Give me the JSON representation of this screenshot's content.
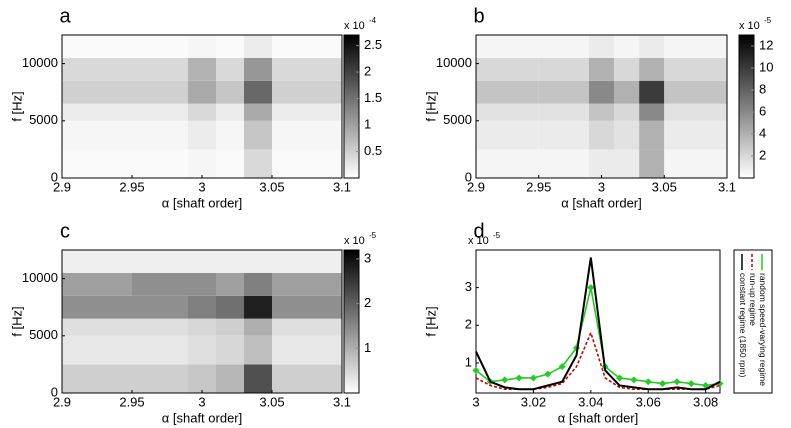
{
  "chart_data": [
    {
      "type": "heatmap",
      "panel_label": "a",
      "xlabel": "α [shaft order]",
      "ylabel": "f [Hz]",
      "xlim": [
        2.9,
        3.1
      ],
      "xticks": [
        2.9,
        2.95,
        3,
        3.05,
        3.1
      ],
      "ylim": [
        0,
        12500
      ],
      "yticks": [
        0,
        5000,
        10000
      ],
      "x_edges": [
        2.9,
        2.95,
        2.99,
        3.01,
        3.03,
        3.05,
        3.1
      ],
      "y_edges": [
        0,
        2500,
        5000,
        6500,
        8500,
        10500,
        12500
      ],
      "z": [
        [
          0.05,
          0.05,
          0.1,
          0.05,
          0.4,
          0.05
        ],
        [
          0.1,
          0.1,
          0.2,
          0.1,
          0.6,
          0.1
        ],
        [
          0.2,
          0.2,
          0.4,
          0.2,
          0.9,
          0.2
        ],
        [
          0.5,
          0.5,
          0.9,
          0.6,
          1.6,
          0.5
        ],
        [
          0.4,
          0.4,
          0.8,
          0.4,
          1.1,
          0.4
        ],
        [
          0.05,
          0.05,
          0.1,
          0.05,
          0.2,
          0.05
        ]
      ],
      "zlim": [
        0,
        2.7
      ],
      "zticks": [
        0.5,
        1,
        1.5,
        2,
        2.5
      ],
      "colorbar_label": "x 10",
      "colorbar_exponent": "-4"
    },
    {
      "type": "heatmap",
      "panel_label": "b",
      "xlabel": "α [shaft order]",
      "ylabel": "f [Hz]",
      "xlim": [
        2.9,
        3.1
      ],
      "xticks": [
        2.9,
        2.95,
        3,
        3.05,
        3.1
      ],
      "ylim": [
        0,
        12500
      ],
      "yticks": [
        0,
        5000,
        10000
      ],
      "x_edges": [
        2.9,
        2.95,
        2.99,
        3.01,
        3.03,
        3.05,
        3.1
      ],
      "y_edges": [
        0,
        2500,
        5000,
        6500,
        8500,
        10500,
        12500
      ],
      "z": [
        [
          0.5,
          0.5,
          1,
          1,
          4,
          0.5
        ],
        [
          1,
          1,
          2,
          1.5,
          4,
          1
        ],
        [
          1.5,
          1.5,
          3,
          2,
          6,
          1.5
        ],
        [
          3,
          3,
          6,
          4,
          10,
          3
        ],
        [
          2,
          2,
          4,
          2,
          4,
          2
        ],
        [
          0.5,
          0.5,
          1,
          0.5,
          1,
          0.5
        ]
      ],
      "zlim": [
        0,
        13
      ],
      "zticks": [
        2,
        4,
        6,
        8,
        10,
        12
      ],
      "colorbar_label": "x 10",
      "colorbar_exponent": "-5"
    },
    {
      "type": "heatmap",
      "panel_label": "c",
      "xlabel": "α [shaft order]",
      "ylabel": "f [Hz]",
      "xlim": [
        2.9,
        3.1
      ],
      "xticks": [
        2.9,
        2.95,
        3,
        3.05,
        3.1
      ],
      "ylim": [
        0,
        12500
      ],
      "yticks": [
        0,
        5000,
        10000
      ],
      "x_edges": [
        2.9,
        2.95,
        2.99,
        3.01,
        3.03,
        3.05,
        3.1
      ],
      "y_edges": [
        0,
        2500,
        5000,
        6500,
        8500,
        10500,
        12500
      ],
      "z": [
        [
          0.6,
          0.6,
          0.7,
          0.9,
          2.2,
          0.6
        ],
        [
          0.3,
          0.3,
          0.4,
          0.5,
          0.8,
          0.3
        ],
        [
          0.4,
          0.4,
          0.5,
          0.6,
          1.0,
          0.4
        ],
        [
          1.4,
          1.4,
          1.6,
          1.8,
          2.8,
          1.4
        ],
        [
          1.2,
          1.4,
          1.4,
          1.2,
          1.6,
          1.2
        ],
        [
          0.2,
          0.2,
          0.2,
          0.2,
          0.2,
          0.2
        ]
      ],
      "zlim": [
        0,
        3.2
      ],
      "zticks": [
        1,
        2,
        3
      ],
      "colorbar_label": "x 10",
      "colorbar_exponent": "-5"
    },
    {
      "type": "line",
      "panel_label": "d",
      "xlabel": "α [shaft order]",
      "ylabel": "f [Hz]",
      "y_scale_label": "x 10",
      "y_scale_exponent": "-5",
      "xlim": [
        3.0,
        3.085
      ],
      "xticks": [
        3,
        3.02,
        3.04,
        3.06,
        3.08
      ],
      "ylim": [
        0.2,
        4.0
      ],
      "yticks": [
        1,
        2,
        3
      ],
      "x": [
        3.0,
        3.005,
        3.01,
        3.015,
        3.02,
        3.025,
        3.03,
        3.035,
        3.04,
        3.045,
        3.05,
        3.055,
        3.06,
        3.065,
        3.07,
        3.075,
        3.08,
        3.085
      ],
      "legend": "right",
      "series": [
        {
          "name": "constant regime (1850 rpm)",
          "color": "#000000",
          "values": [
            1.3,
            0.5,
            0.35,
            0.3,
            0.3,
            0.4,
            0.5,
            1.2,
            3.8,
            0.8,
            0.4,
            0.35,
            0.3,
            0.3,
            0.35,
            0.3,
            0.3,
            0.5
          ]
        },
        {
          "name": "run-up regime",
          "color": "#cc0000",
          "values": [
            0.6,
            0.4,
            0.3,
            0.3,
            0.3,
            0.35,
            0.45,
            0.9,
            1.8,
            0.6,
            0.35,
            0.3,
            0.3,
            0.3,
            0.3,
            0.3,
            0.3,
            0.4
          ]
        },
        {
          "name": "random speed-varying regime",
          "color": "#22cc22",
          "values": [
            0.8,
            0.5,
            0.55,
            0.6,
            0.6,
            0.7,
            0.9,
            1.4,
            3.0,
            0.9,
            0.6,
            0.55,
            0.5,
            0.45,
            0.5,
            0.45,
            0.4,
            0.45
          ]
        }
      ]
    }
  ]
}
